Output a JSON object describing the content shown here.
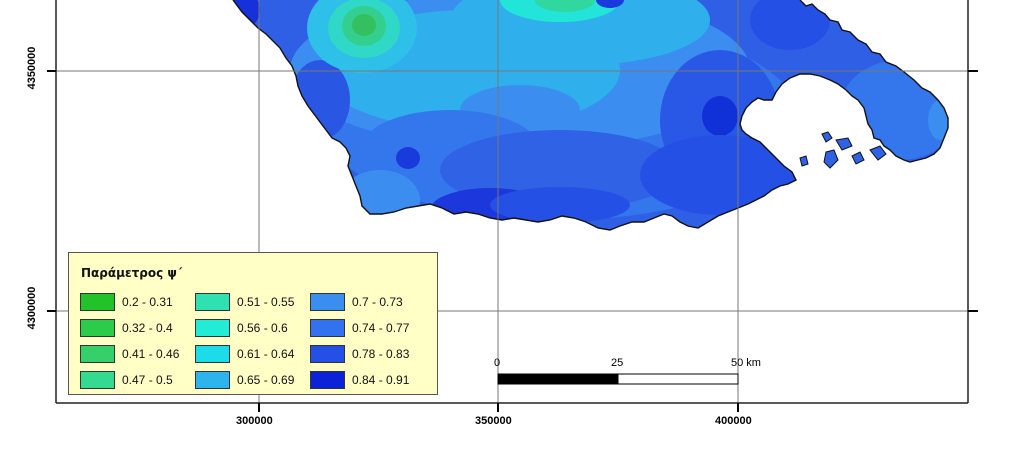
{
  "legend": {
    "title": "Παράμετρος ψ΄",
    "items": [
      {
        "label": "0.2 - 0.31",
        "color": "#22c32a"
      },
      {
        "label": "0.32 - 0.4",
        "color": "#2ccb4a"
      },
      {
        "label": "0.41 - 0.46",
        "color": "#35d06a"
      },
      {
        "label": "0.47 - 0.5",
        "color": "#33da90"
      },
      {
        "label": "0.51 - 0.55",
        "color": "#2fe0b0"
      },
      {
        "label": "0.56 - 0.6",
        "color": "#22ecd6"
      },
      {
        "label": "0.61 - 0.64",
        "color": "#1cdcec"
      },
      {
        "label": "0.65 - 0.69",
        "color": "#2eb4ec"
      },
      {
        "label": "0.7 - 0.73",
        "color": "#3a8ef0"
      },
      {
        "label": "0.74 - 0.77",
        "color": "#3272ee"
      },
      {
        "label": "0.78 - 0.83",
        "color": "#2550e6"
      },
      {
        "label": "0.84 - 0.91",
        "color": "#0c22d8"
      }
    ]
  },
  "axes": {
    "x_ticks": [
      "300000",
      "350000",
      "400000"
    ],
    "y_ticks": [
      "4350000",
      "4300000"
    ]
  },
  "scalebar": {
    "labels": [
      "0",
      "25",
      "50 km"
    ]
  }
}
